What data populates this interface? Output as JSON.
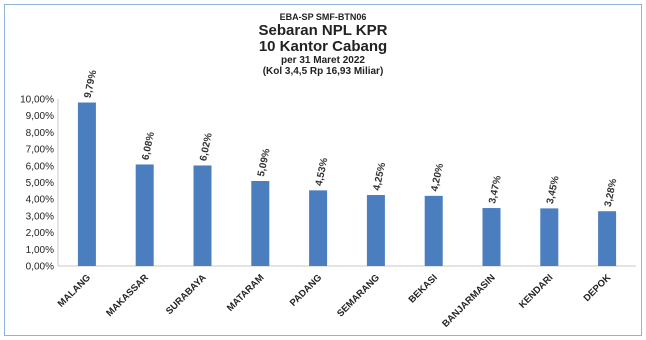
{
  "chart_data": {
    "type": "bar",
    "code": "EBA-SP SMF-BTN06",
    "title": "Sebaran NPL KPR",
    "title2": "10 Kantor Cabang",
    "subtitle": "per 31 Maret 2022",
    "subtitle2": "(Kol 3,4,5 Rp 16,93 Miliar)",
    "categories": [
      "MALANG",
      "MAKASSAR",
      "SURABAYA",
      "MATARAM",
      "PADANG",
      "SEMARANG",
      "BEKASI",
      "BANJARMASIN",
      "KENDARI",
      "DEPOK"
    ],
    "values": [
      9.79,
      6.08,
      6.02,
      5.09,
      4.53,
      4.25,
      4.2,
      3.47,
      3.45,
      3.28
    ],
    "value_labels": [
      "9,79%",
      "6,08%",
      "6,02%",
      "5,09%",
      "4,53%",
      "4,25%",
      "4,20%",
      "3,47%",
      "3,45%",
      "3,28%"
    ],
    "y_ticks": [
      "0,00%",
      "1,00%",
      "2,00%",
      "3,00%",
      "4,00%",
      "5,00%",
      "6,00%",
      "7,00%",
      "8,00%",
      "9,00%",
      "10,00%"
    ],
    "ylim": [
      0,
      10
    ],
    "bar_color": "#4a7ebf",
    "grid": false,
    "xlabel": "",
    "ylabel": ""
  }
}
